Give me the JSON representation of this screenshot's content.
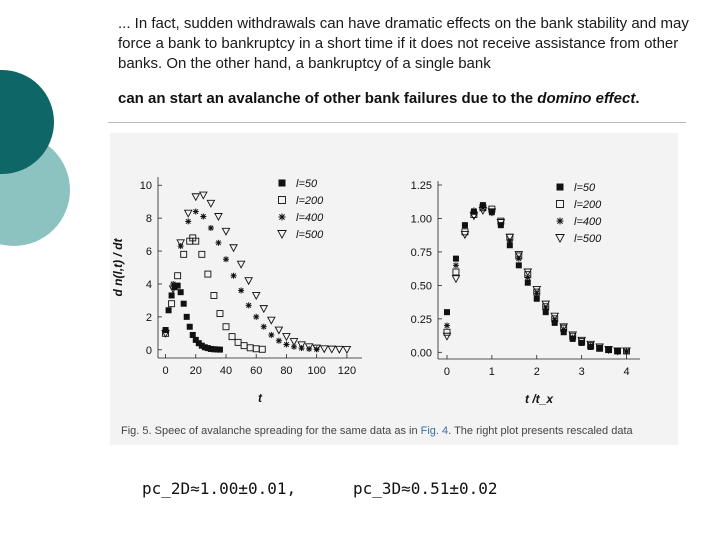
{
  "slide": {
    "intro_text": "... In fact, sudden withdrawals can have dramatic effects on the bank stability and may force a bank to bankruptcy in a short time if it does not receive assistance from other banks. On the other hand, a bankruptcy of a single bank",
    "avalanche_text_before": "can an start an avalanche of other bank failures due to the ",
    "avalanche_text_emph": "domino effect",
    "avalanche_text_after": ".",
    "caption_before": "Fig. 5. Speec of avalanche spreading for the same data as in ",
    "caption_link": "Fig. 4",
    "caption_after": ". The right plot presents rescaled data",
    "formula_2d": "pc_2D≈1.00±0.01,",
    "formula_3d": "pc_3D≈0.51±0.02"
  },
  "colors": {
    "deco_dark": "#0e6666",
    "deco_light": "#8cc3c0",
    "series_color": "#111111",
    "caption_link": "#3a6ea5"
  },
  "chart_data": [
    {
      "type": "scatter",
      "title": "",
      "xlabel": "t",
      "ylabel": "d n(l,t) / dt",
      "xlim": [
        -5,
        130
      ],
      "ylim": [
        -0.5,
        10.5
      ],
      "xticks": [
        0,
        20,
        40,
        60,
        80,
        100,
        120
      ],
      "yticks": [
        0,
        2,
        4,
        6,
        8,
        10
      ],
      "legend_position": "top-right",
      "series": [
        {
          "name": "l=50",
          "marker": "filled-square",
          "x": [
            0,
            2,
            4,
            6,
            8,
            10,
            12,
            14,
            16,
            18,
            20,
            22,
            24,
            26,
            28,
            30,
            32,
            34,
            36
          ],
          "y": [
            1.2,
            2.4,
            3.3,
            3.8,
            3.9,
            3.5,
            2.8,
            2.0,
            1.4,
            0.9,
            0.6,
            0.4,
            0.25,
            0.15,
            0.1,
            0.05,
            0.03,
            0.02,
            0.01
          ]
        },
        {
          "name": "l=200",
          "marker": "open-square",
          "x": [
            0,
            4,
            8,
            12,
            16,
            18,
            20,
            24,
            28,
            32,
            36,
            40,
            44,
            48,
            52,
            56,
            60,
            64
          ],
          "y": [
            1.0,
            2.8,
            4.5,
            5.8,
            6.6,
            6.8,
            6.6,
            5.8,
            4.6,
            3.3,
            2.2,
            1.4,
            0.8,
            0.45,
            0.25,
            0.12,
            0.06,
            0.03
          ]
        },
        {
          "name": "l=400",
          "marker": "asterisk",
          "x": [
            0,
            5,
            10,
            15,
            20,
            25,
            30,
            35,
            40,
            45,
            50,
            55,
            60,
            65,
            70,
            75,
            80,
            85,
            90,
            95,
            100
          ],
          "y": [
            1.2,
            4.0,
            6.3,
            7.8,
            8.4,
            8.1,
            7.4,
            6.5,
            5.5,
            4.5,
            3.6,
            2.7,
            2.0,
            1.4,
            0.9,
            0.55,
            0.32,
            0.18,
            0.1,
            0.05,
            0.03
          ]
        },
        {
          "name": "l=500",
          "marker": "open-triangle-down",
          "x": [
            0,
            5,
            10,
            15,
            20,
            25,
            30,
            35,
            40,
            45,
            50,
            55,
            60,
            65,
            70,
            75,
            80,
            85,
            90,
            95,
            100,
            105,
            110,
            115,
            120
          ],
          "y": [
            1.0,
            3.7,
            6.5,
            8.3,
            9.3,
            9.4,
            8.9,
            8.1,
            7.2,
            6.2,
            5.2,
            4.2,
            3.3,
            2.5,
            1.8,
            1.2,
            0.8,
            0.5,
            0.3,
            0.18,
            0.1,
            0.06,
            0.04,
            0.03,
            0.02
          ]
        }
      ]
    },
    {
      "type": "scatter",
      "title": "",
      "xlabel": "t /t_x",
      "ylabel": "",
      "xlim": [
        -0.2,
        4.3
      ],
      "ylim": [
        -0.05,
        1.28
      ],
      "xticks": [
        0,
        1,
        2,
        3,
        4
      ],
      "yticks": [
        0.0,
        0.25,
        0.5,
        0.75,
        1.0,
        1.25
      ],
      "ytick_labels": [
        "0.00",
        "0.25",
        "0.50",
        "0.75",
        "1.00",
        "1.25"
      ],
      "legend_position": "top-right",
      "series": [
        {
          "name": "l=50",
          "marker": "filled-square",
          "x": [
            0,
            0.2,
            0.4,
            0.6,
            0.8,
            1.0,
            1.2,
            1.4,
            1.6,
            1.8,
            2.0,
            2.2,
            2.4,
            2.6,
            2.8,
            3.0,
            3.2,
            3.4,
            3.6,
            3.8
          ],
          "y": [
            0.3,
            0.7,
            0.95,
            1.05,
            1.1,
            1.05,
            0.95,
            0.8,
            0.65,
            0.52,
            0.4,
            0.3,
            0.22,
            0.15,
            0.1,
            0.07,
            0.04,
            0.03,
            0.02,
            0.01
          ]
        },
        {
          "name": "l=200",
          "marker": "open-square",
          "x": [
            0,
            0.2,
            0.4,
            0.6,
            0.8,
            1.0,
            1.2,
            1.4,
            1.6,
            1.8,
            2.0,
            2.2,
            2.4,
            2.6,
            2.8,
            3.0,
            3.2,
            3.4,
            3.6,
            3.8,
            4.0
          ],
          "y": [
            0.15,
            0.6,
            0.9,
            1.03,
            1.08,
            1.07,
            0.98,
            0.86,
            0.72,
            0.58,
            0.45,
            0.34,
            0.25,
            0.18,
            0.12,
            0.08,
            0.05,
            0.03,
            0.02,
            0.01,
            0.01
          ]
        },
        {
          "name": "l=400",
          "marker": "asterisk",
          "x": [
            0,
            0.2,
            0.4,
            0.6,
            0.8,
            1.0,
            1.2,
            1.4,
            1.6,
            1.8,
            2.0,
            2.2,
            2.4,
            2.6,
            2.8,
            3.0,
            3.2,
            3.4,
            3.6,
            3.8,
            4.0
          ],
          "y": [
            0.2,
            0.65,
            0.95,
            1.06,
            1.08,
            1.04,
            0.95,
            0.83,
            0.7,
            0.56,
            0.44,
            0.33,
            0.24,
            0.17,
            0.11,
            0.07,
            0.05,
            0.03,
            0.02,
            0.01,
            0.01
          ]
        },
        {
          "name": "l=500",
          "marker": "open-triangle-down",
          "x": [
            0,
            0.2,
            0.4,
            0.6,
            0.8,
            1.0,
            1.2,
            1.4,
            1.6,
            1.8,
            2.0,
            2.2,
            2.4,
            2.6,
            2.8,
            3.0,
            3.2,
            3.4,
            3.6,
            3.8,
            4.0
          ],
          "y": [
            0.12,
            0.55,
            0.88,
            1.02,
            1.06,
            1.05,
            0.97,
            0.86,
            0.73,
            0.6,
            0.47,
            0.36,
            0.27,
            0.19,
            0.13,
            0.09,
            0.06,
            0.04,
            0.02,
            0.01,
            0.01
          ]
        }
      ]
    }
  ]
}
